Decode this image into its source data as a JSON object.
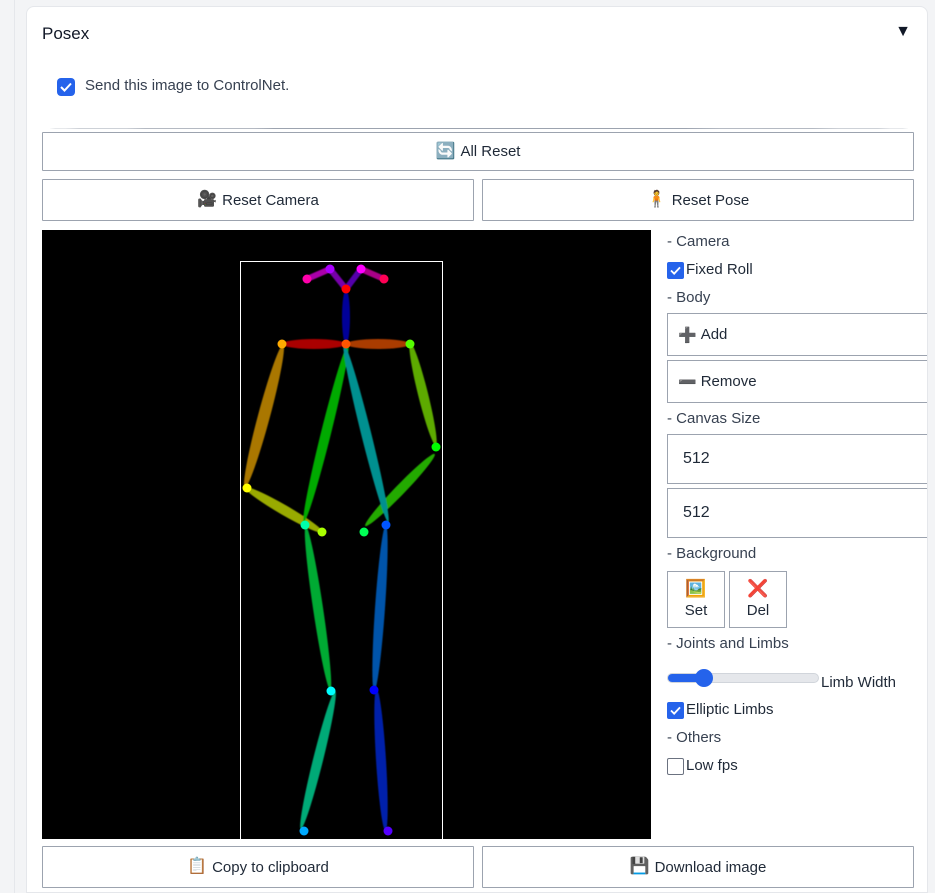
{
  "panel": {
    "title": "Posex",
    "collapse_icon": "▼"
  },
  "controlnet": {
    "label": "Send this image to ControlNet.",
    "checked": true
  },
  "buttons": {
    "all_reset": {
      "icon": "🔄",
      "label": "All Reset"
    },
    "reset_camera": {
      "icon": "🎥",
      "label": "Reset Camera"
    },
    "reset_pose": {
      "icon": "🧍",
      "label": "Reset Pose"
    },
    "copy_clipboard": {
      "icon": "📋",
      "label": "Copy to clipboard"
    },
    "download_image": {
      "icon": "💾",
      "label": "Download image"
    }
  },
  "controls": {
    "camera": {
      "heading": "- Camera",
      "fixed_roll_label": "Fixed Roll",
      "fixed_roll": true
    },
    "body": {
      "heading": "- Body",
      "add": {
        "icon": "➕",
        "label": "Add"
      },
      "remove": {
        "icon": "➖",
        "label": "Remove"
      }
    },
    "canvas_size": {
      "heading": "- Canvas Size",
      "width": "512",
      "height": "512"
    },
    "background": {
      "heading": "- Background",
      "set": {
        "icon": "🖼️",
        "label": "Set"
      },
      "del": {
        "icon": "❌",
        "label": "Del"
      }
    },
    "joints_limbs": {
      "heading": "- Joints and Limbs",
      "limb_width_label": "Limb Width",
      "limb_width_fraction": 0.24,
      "elliptic_label": "Elliptic Limbs",
      "elliptic": true
    },
    "others": {
      "heading": "- Others",
      "low_fps_label": "Low fps",
      "low_fps": false
    }
  },
  "colors": {
    "accent": "#2563eb",
    "canvas_bg": "#000000"
  }
}
